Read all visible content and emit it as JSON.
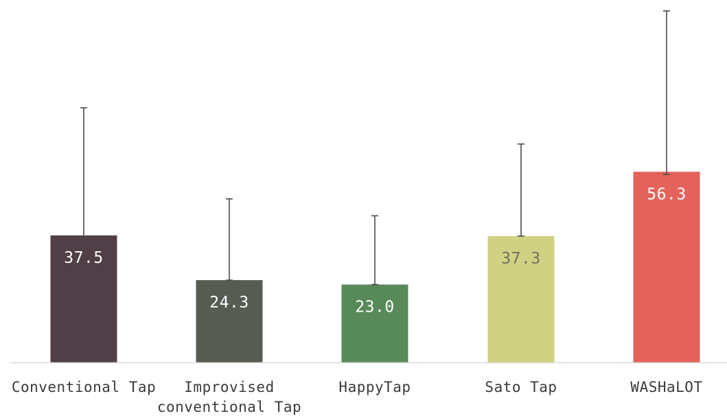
{
  "chart_data": {
    "type": "bar",
    "categories": [
      [
        "Conventional Tap"
      ],
      [
        "Improvised",
        "conventional Tap"
      ],
      [
        "HappyTap"
      ],
      [
        "Sato Tap"
      ],
      [
        "WASHaLOT"
      ]
    ],
    "values": [
      37.5,
      24.3,
      23.0,
      37.3,
      56.3
    ],
    "value_labels": [
      "37.5",
      "24.3",
      "23.0",
      "37.3",
      "56.3"
    ],
    "error_upper": [
      75.2,
      48.3,
      43.3,
      64.5,
      103.8
    ],
    "error_lower": [
      36.7,
      24.3,
      23.0,
      37.3,
      55.5
    ],
    "ylim": [
      0,
      105
    ],
    "bar_colors": [
      "#513f47",
      "#565c52",
      "#588a59",
      "#d1d183",
      "#e3635a"
    ],
    "label_colors": [
      "#ffffff",
      "#ffffff",
      "#ffffff",
      "#737360",
      "#ffffff"
    ],
    "error_bar_color": "#4a4a4a",
    "axis_color": "#d9d9d9",
    "grid": false,
    "title": "",
    "xlabel": "",
    "ylabel": ""
  }
}
